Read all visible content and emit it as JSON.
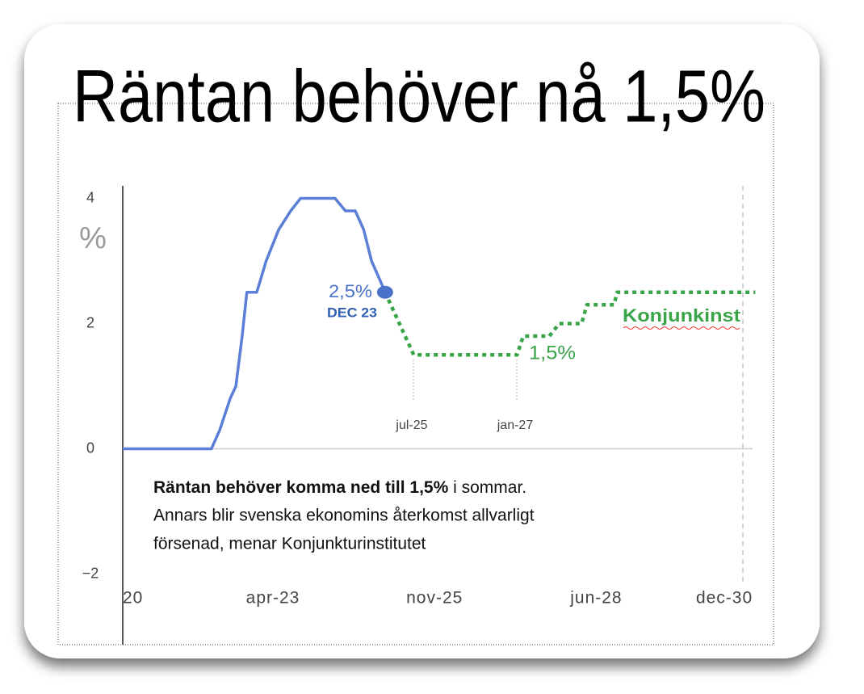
{
  "chart_data": {
    "type": "line",
    "title": "Räntan behöver nå 1,5%",
    "y_label": "%",
    "xlim": [
      10.2,
      135
    ],
    "xticks": [
      {
        "value": 10.2,
        "label": "20"
      },
      {
        "value": 39,
        "label": "apr-23"
      },
      {
        "value": 70,
        "label": "nov-25"
      },
      {
        "value": 101,
        "label": "jun-28"
      },
      {
        "value": 131,
        "label": "dec-30"
      }
    ],
    "ylim": [
      -3,
      4.2
    ],
    "yticks": [
      {
        "value": -2,
        "label": "−2"
      },
      0,
      2,
      4
    ],
    "series": [
      {
        "color": "#5b7fd6",
        "style": "solid",
        "x": [
          10.2,
          27.2,
          28.8,
          30.8,
          31.9,
          33.1,
          34,
          35.9,
          37.7,
          40.1,
          42.4,
          44.3,
          50.9,
          52.9,
          54.8,
          56.4,
          57.9,
          59.5,
          60.5
        ],
        "values": [
          0,
          0,
          0.3,
          0.8,
          1.0,
          1.8,
          2.5,
          2.5,
          3.0,
          3.5,
          3.8,
          4.0,
          4.0,
          3.8,
          3.8,
          3.5,
          3.0,
          2.7,
          2.5
        ]
      },
      {
        "name": "Konjunkinst",
        "color": "#3aa548",
        "style": "dotted",
        "x": [
          60.5,
          66,
          85.8,
          87,
          92,
          93.9,
          98.2,
          99.2,
          104.4,
          105,
          131.5
        ],
        "values": [
          2.5,
          1.5,
          1.5,
          1.8,
          1.8,
          2.0,
          2.0,
          2.3,
          2.3,
          2.5,
          2.5
        ]
      }
    ],
    "annotations": [
      "2,5%",
      "DEC 23",
      "1,5%",
      "jul-25",
      "jan-27"
    ],
    "caption": {
      "lead": "Räntan behöver komma ned till 1,5%",
      "lines": [
        " i sommar.",
        "Annars blir svenska ekonomins återkomst allvarligt",
        "försenad, menar Konjunkturinstitutet"
      ]
    }
  }
}
